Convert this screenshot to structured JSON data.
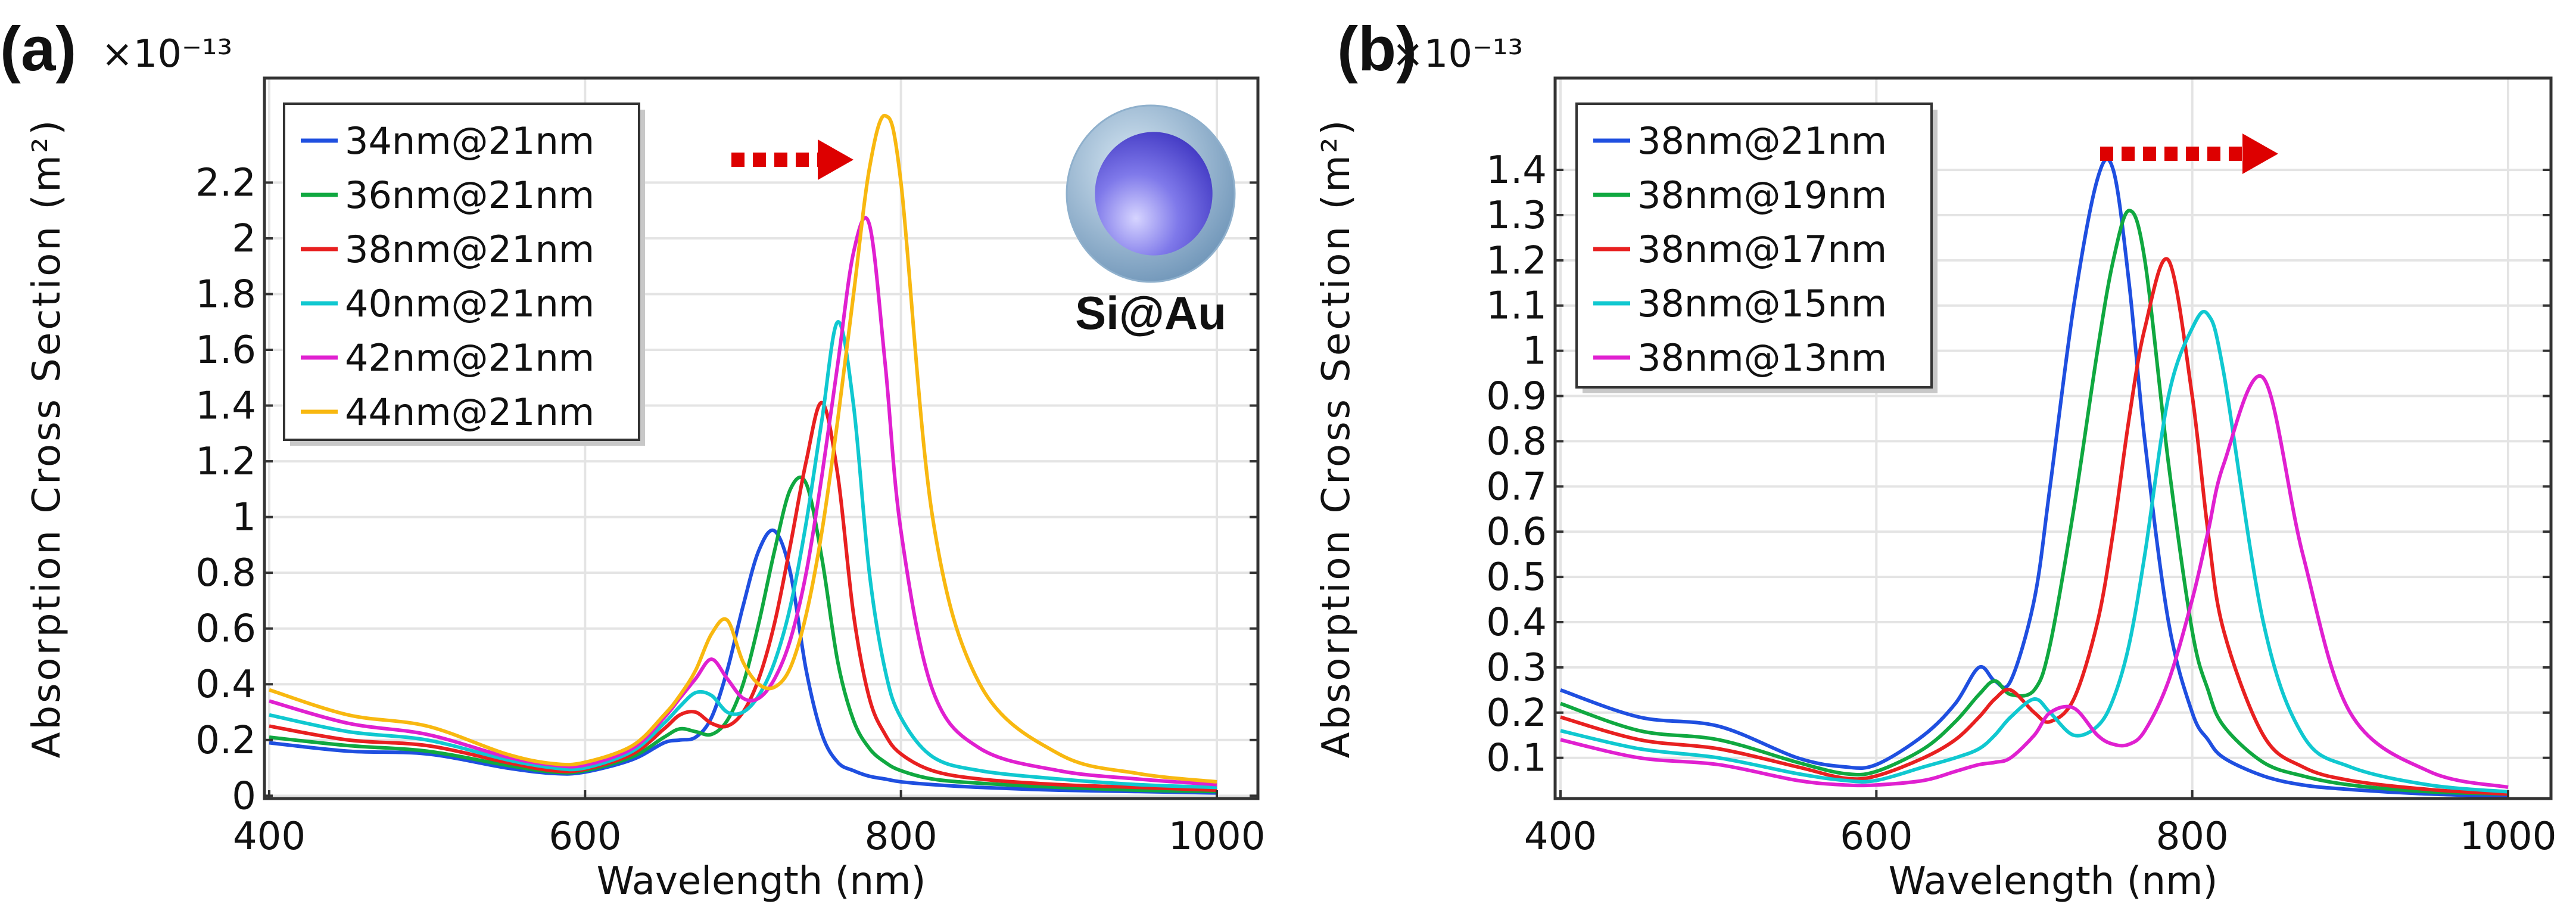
{
  "chart_data": [
    {
      "panel_label": "(a)",
      "type": "line",
      "xlabel": "Wavelength (nm)",
      "ylabel": "Absorption Cross Section (m²)",
      "y_multiplier": "×10⁻¹³",
      "xlim": [
        400,
        1000
      ],
      "ylim": [
        -0.01,
        2.575
      ],
      "xticks": [
        400,
        600,
        800,
        1000
      ],
      "xtick_labels": [
        "400",
        "600",
        "800",
        "1000"
      ],
      "yticks": [
        0,
        0.2,
        0.4,
        0.6,
        0.8,
        1,
        1.2,
        1.4,
        1.6,
        1.8,
        2,
        2.2
      ],
      "ytick_labels": [
        "0",
        "0.2",
        "0.4",
        "0.6",
        "0.8",
        "1",
        "1.2",
        "1.4",
        "1.6",
        "1.8",
        "2",
        "2.2"
      ],
      "grid": true,
      "legend_position": "top-left",
      "inset_label": "Si@Au",
      "annotation": "red dashed arrow pointing right (red-shift)",
      "x": [
        400,
        450,
        500,
        550,
        580,
        600,
        630,
        650,
        660,
        670,
        680,
        690,
        700,
        710,
        720,
        730,
        740,
        750,
        760,
        770,
        780,
        790,
        800,
        820,
        850,
        900,
        950,
        1000
      ],
      "series": [
        {
          "name": "34nm@21nm",
          "color": "#1f4fe0",
          "values": [
            0.19,
            0.16,
            0.15,
            0.1,
            0.08,
            0.085,
            0.13,
            0.19,
            0.2,
            0.21,
            0.28,
            0.45,
            0.68,
            0.88,
            0.95,
            0.8,
            0.45,
            0.22,
            0.12,
            0.09,
            0.07,
            0.06,
            0.05,
            0.04,
            0.03,
            0.02,
            0.015,
            0.01
          ]
        },
        {
          "name": "36nm@21nm",
          "color": "#10a840",
          "values": [
            0.21,
            0.18,
            0.16,
            0.11,
            0.085,
            0.09,
            0.14,
            0.21,
            0.24,
            0.23,
            0.22,
            0.27,
            0.4,
            0.62,
            0.88,
            1.1,
            1.12,
            0.85,
            0.48,
            0.27,
            0.17,
            0.12,
            0.09,
            0.06,
            0.045,
            0.03,
            0.02,
            0.015
          ]
        },
        {
          "name": "38nm@21nm",
          "color": "#e82020",
          "values": [
            0.25,
            0.2,
            0.18,
            0.12,
            0.09,
            0.095,
            0.15,
            0.24,
            0.29,
            0.3,
            0.26,
            0.25,
            0.3,
            0.42,
            0.62,
            0.9,
            1.2,
            1.41,
            1.15,
            0.65,
            0.35,
            0.22,
            0.15,
            0.09,
            0.06,
            0.04,
            0.03,
            0.02
          ]
        },
        {
          "name": "40nm@21nm",
          "color": "#10c8d0",
          "values": [
            0.29,
            0.23,
            0.2,
            0.13,
            0.1,
            0.1,
            0.16,
            0.26,
            0.32,
            0.37,
            0.36,
            0.3,
            0.3,
            0.36,
            0.48,
            0.68,
            0.98,
            1.35,
            1.7,
            1.4,
            0.8,
            0.45,
            0.28,
            0.14,
            0.09,
            0.06,
            0.04,
            0.03
          ]
        },
        {
          "name": "42nm@21nm",
          "color": "#e020d0",
          "values": [
            0.34,
            0.26,
            0.22,
            0.14,
            0.11,
            0.11,
            0.17,
            0.28,
            0.35,
            0.42,
            0.49,
            0.42,
            0.35,
            0.35,
            0.42,
            0.56,
            0.8,
            1.15,
            1.55,
            1.95,
            2.05,
            1.55,
            0.95,
            0.38,
            0.17,
            0.09,
            0.06,
            0.04
          ]
        },
        {
          "name": "44nm@21nm",
          "color": "#f8b810",
          "values": [
            0.38,
            0.29,
            0.25,
            0.15,
            0.115,
            0.12,
            0.18,
            0.29,
            0.36,
            0.45,
            0.58,
            0.63,
            0.48,
            0.4,
            0.39,
            0.46,
            0.65,
            0.95,
            1.35,
            1.8,
            2.25,
            2.44,
            2.2,
            1.0,
            0.4,
            0.15,
            0.08,
            0.05
          ]
        }
      ]
    },
    {
      "panel_label": "(b)",
      "type": "line",
      "xlabel": "Wavelength (nm)",
      "ylabel": "Absorption Cross Section (m²)",
      "y_multiplier": "×10⁻¹³",
      "xlim": [
        400,
        1000
      ],
      "ylim": [
        0.01,
        1.603
      ],
      "xticks": [
        400,
        600,
        800,
        1000
      ],
      "xtick_labels": [
        "400",
        "600",
        "800",
        "1000"
      ],
      "yticks": [
        0.1,
        0.2,
        0.3,
        0.4,
        0.5,
        0.6,
        0.7,
        0.8,
        0.9,
        1,
        1.1,
        1.2,
        1.3,
        1.4
      ],
      "ytick_labels": [
        "0.1",
        "0.2",
        "0.3",
        "0.4",
        "0.5",
        "0.6",
        "0.7",
        "0.8",
        "0.9",
        "1",
        "1.1",
        "1.2",
        "1.3",
        "1.4"
      ],
      "grid": true,
      "legend_position": "top-left",
      "annotation": "red dashed arrow pointing right (red-shift)",
      "x": [
        400,
        450,
        500,
        550,
        580,
        600,
        630,
        650,
        665,
        675,
        685,
        700,
        710,
        725,
        740,
        750,
        760,
        770,
        785,
        800,
        810,
        820,
        845,
        870,
        900,
        950,
        1000
      ],
      "series": [
        {
          "name": "38nm@21nm",
          "color": "#1f4fe0",
          "values": [
            0.25,
            0.19,
            0.17,
            0.1,
            0.08,
            0.085,
            0.15,
            0.22,
            0.3,
            0.27,
            0.27,
            0.45,
            0.7,
            1.1,
            1.38,
            1.4,
            1.15,
            0.8,
            0.4,
            0.2,
            0.14,
            0.1,
            0.06,
            0.04,
            0.03,
            0.02,
            0.015
          ]
        },
        {
          "name": "38nm@19nm",
          "color": "#10a840",
          "values": [
            0.22,
            0.16,
            0.14,
            0.09,
            0.065,
            0.07,
            0.12,
            0.18,
            0.24,
            0.27,
            0.24,
            0.25,
            0.35,
            0.65,
            1.0,
            1.2,
            1.31,
            1.2,
            0.75,
            0.38,
            0.25,
            0.17,
            0.09,
            0.06,
            0.04,
            0.025,
            0.02
          ]
        },
        {
          "name": "38nm@17nm",
          "color": "#e82020",
          "values": [
            0.19,
            0.14,
            0.12,
            0.08,
            0.055,
            0.06,
            0.1,
            0.14,
            0.19,
            0.23,
            0.25,
            0.2,
            0.18,
            0.23,
            0.4,
            0.6,
            0.85,
            1.05,
            1.2,
            0.9,
            0.6,
            0.38,
            0.15,
            0.08,
            0.05,
            0.03,
            0.02
          ]
        },
        {
          "name": "38nm@15nm",
          "color": "#10c8d0",
          "values": [
            0.16,
            0.12,
            0.1,
            0.065,
            0.05,
            0.05,
            0.08,
            0.1,
            0.12,
            0.15,
            0.19,
            0.23,
            0.2,
            0.15,
            0.17,
            0.23,
            0.35,
            0.55,
            0.9,
            1.05,
            1.08,
            0.95,
            0.4,
            0.15,
            0.08,
            0.04,
            0.025
          ]
        },
        {
          "name": "38nm@13nm",
          "color": "#e020d0",
          "values": [
            0.14,
            0.1,
            0.085,
            0.05,
            0.04,
            0.04,
            0.05,
            0.07,
            0.085,
            0.09,
            0.1,
            0.15,
            0.2,
            0.21,
            0.15,
            0.13,
            0.13,
            0.16,
            0.27,
            0.45,
            0.6,
            0.75,
            0.94,
            0.55,
            0.2,
            0.07,
            0.035
          ]
        }
      ]
    }
  ],
  "colors": {
    "arrow": "#dd0000",
    "grid": "#e4e4e4",
    "axis": "#333333"
  }
}
